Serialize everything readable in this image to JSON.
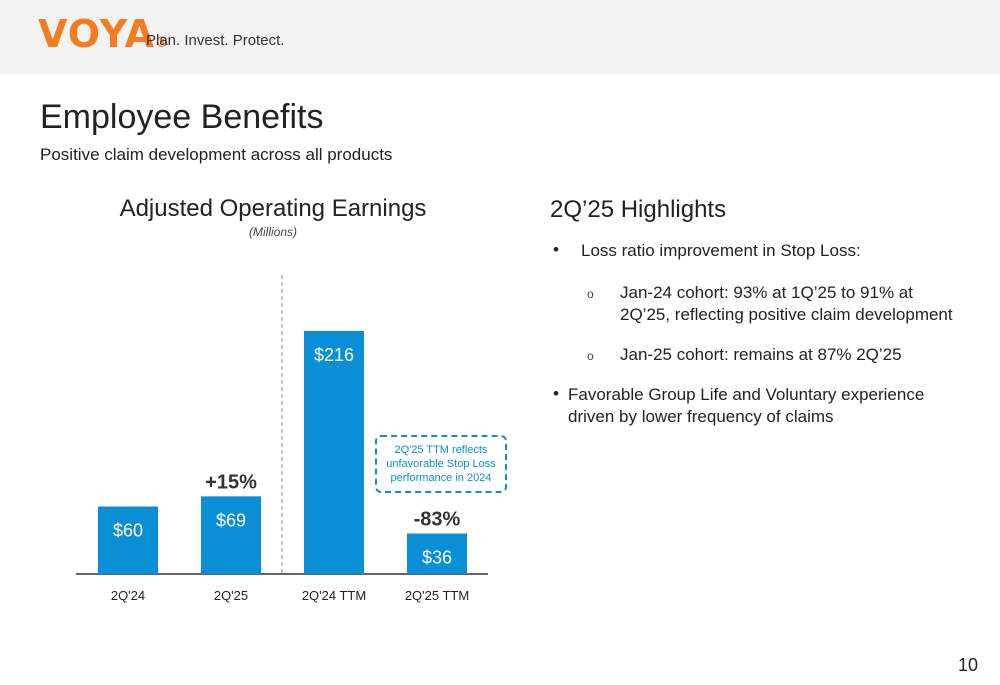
{
  "header": {
    "logo": "VOYA",
    "logo_mark": "®",
    "tagline": "Plan. Invest. Protect."
  },
  "page": {
    "title": "Employee Benefits",
    "subtitle": "Positive claim development across all products",
    "page_number": "10"
  },
  "chart_data": {
    "type": "bar",
    "title": "Adjusted Operating Earnings",
    "subtitle": "(Millions)",
    "categories": [
      "2Q'24",
      "2Q'25",
      "2Q'24 TTM",
      "2Q'25 TTM"
    ],
    "values": [
      60,
      69,
      216,
      36
    ],
    "value_labels": [
      "$60",
      "$69",
      "$216",
      "$36"
    ],
    "change_labels": [
      {
        "between": [
          "2Q'24",
          "2Q'25"
        ],
        "text": "+15%"
      },
      {
        "between": [
          "2Q'24 TTM",
          "2Q'25 TTM"
        ],
        "text": "-83%"
      }
    ],
    "bar_color": "#0a8fd6",
    "grid": false,
    "separator": "dashed line between 2Q'25 and 2Q'24 TTM",
    "annotation": "2Q'25 TTM reflects unfavorable Stop Loss performance in 2024"
  },
  "highlights": {
    "title": "2Q’25 Highlights",
    "items": [
      {
        "text": "Loss ratio improvement in Stop Loss:",
        "subitems": [
          "Jan-24 cohort: 93% at 1Q’25 to 91% at 2Q’25, reflecting positive claim development",
          "Jan-25 cohort: remains at 87% 2Q’25"
        ]
      },
      {
        "text": "Favorable Group Life and Voluntary experience driven by lower frequency of claims",
        "subitems": []
      }
    ]
  }
}
